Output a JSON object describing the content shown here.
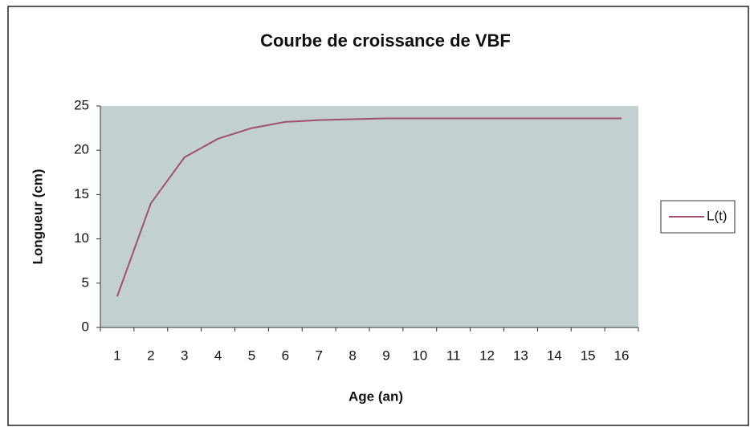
{
  "chart_data": {
    "type": "line",
    "title": "Courbe de croissance de VBF",
    "x_label": "Age (an)",
    "y_label": "Longueur (cm)",
    "categories": [
      "1",
      "2",
      "3",
      "4",
      "5",
      "6",
      "7",
      "8",
      "9",
      "10",
      "11",
      "12",
      "13",
      "14",
      "15",
      "16"
    ],
    "series": [
      {
        "name": "L(t)",
        "color": "#a0506e",
        "values": [
          3.5,
          14,
          19.2,
          21.3,
          22.5,
          23.2,
          23.4,
          23.5,
          23.6,
          23.6,
          23.6,
          23.6,
          23.6,
          23.6,
          23.6,
          23.6
        ]
      }
    ],
    "ylim": [
      0,
      25
    ],
    "yticks": [
      0,
      5,
      10,
      15,
      20,
      25
    ],
    "grid": false,
    "legend": "right"
  }
}
